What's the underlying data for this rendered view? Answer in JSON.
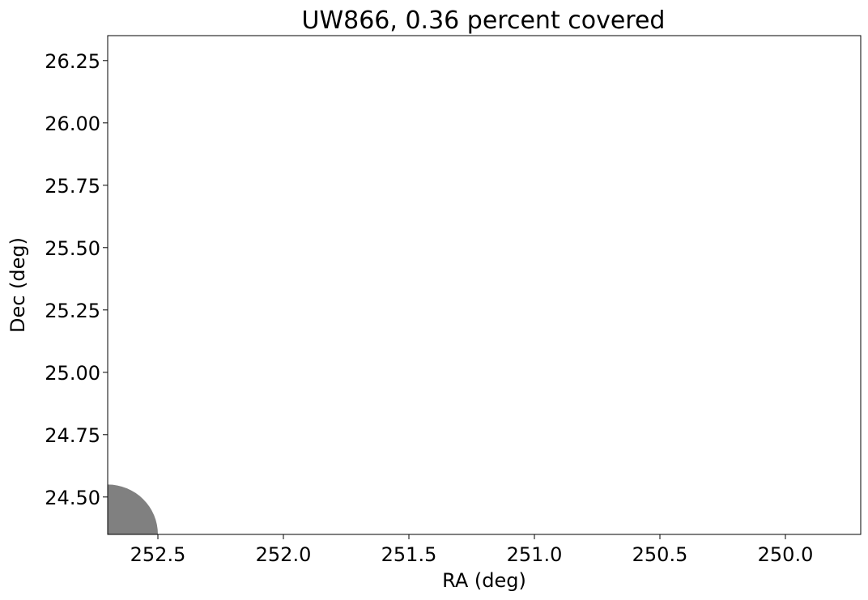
{
  "chart_data": {
    "type": "scatter",
    "title": "UW866, 0.36 percent covered",
    "xlabel": "RA (deg)",
    "ylabel": "Dec (deg)",
    "xlim": [
      252.7,
      249.7
    ],
    "ylim": [
      24.35,
      26.35
    ],
    "x_inverted": true,
    "grid": false,
    "xticks": [
      252.5,
      252.0,
      251.5,
      251.0,
      250.5,
      250.0
    ],
    "xtick_labels": [
      "252.5",
      "252.0",
      "251.5",
      "251.0",
      "250.5",
      "250.0"
    ],
    "yticks": [
      24.5,
      24.75,
      25.0,
      25.25,
      25.5,
      25.75,
      26.0,
      26.25
    ],
    "ytick_labels": [
      "24.50",
      "24.75",
      "25.00",
      "25.25",
      "25.50",
      "25.75",
      "26.00",
      "26.25"
    ],
    "shapes": [
      {
        "type": "circle",
        "center_ra": 252.7,
        "center_dec": 24.35,
        "radius_deg": 0.2,
        "color": "#808080"
      }
    ]
  }
}
